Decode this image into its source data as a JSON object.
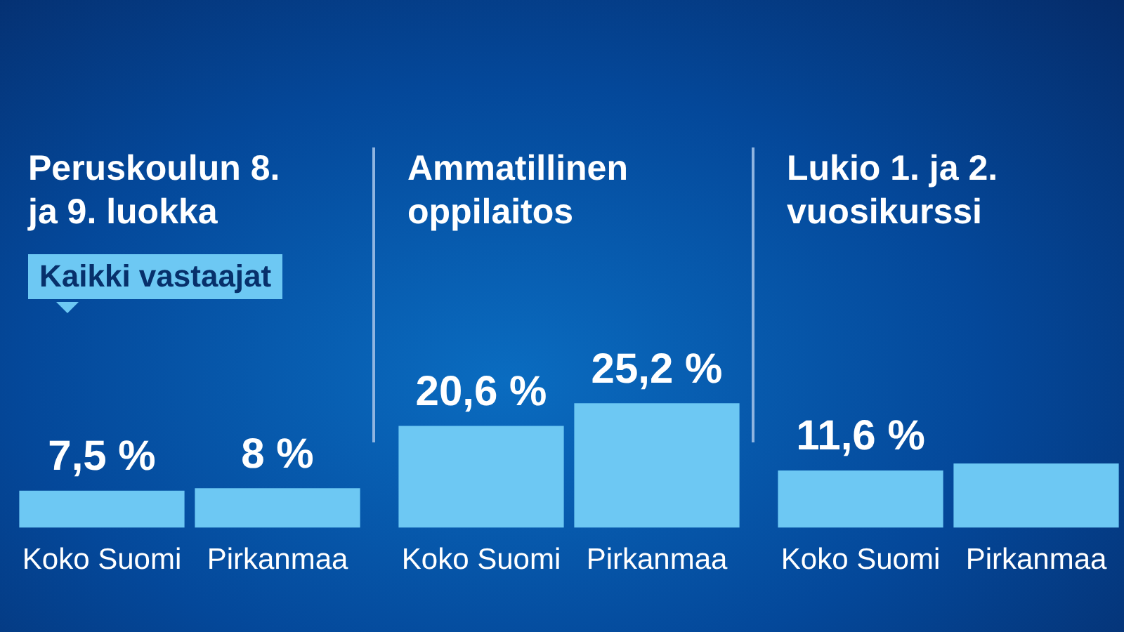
{
  "chart_data": [
    {
      "type": "bar",
      "title": "Peruskoulun 8. ja 9. luokka",
      "annotations": [
        "Kaikki vastaajat"
      ],
      "categories": [
        "Koko Suomi",
        "Pirkanmaa"
      ],
      "values": [
        7.5,
        8
      ],
      "value_labels": [
        "7,5 %",
        "8 %"
      ],
      "color": "#6dc8f3"
    },
    {
      "type": "bar",
      "title": "Ammatillinen oppilaitos",
      "categories": [
        "Koko Suomi",
        "Pirkanmaa"
      ],
      "values": [
        20.6,
        25.2
      ],
      "value_labels": [
        "20,6 %",
        "25,2 %"
      ],
      "color": "#6dc8f3"
    },
    {
      "type": "bar",
      "title": "Lukio 1. ja 2. vuosikurssi",
      "categories": [
        "Koko Suomi",
        "Pirkanmaa"
      ],
      "values": [
        11.6,
        13
      ],
      "value_labels": [
        "11,6 %",
        null
      ],
      "color": "#6dc8f3"
    }
  ]
}
